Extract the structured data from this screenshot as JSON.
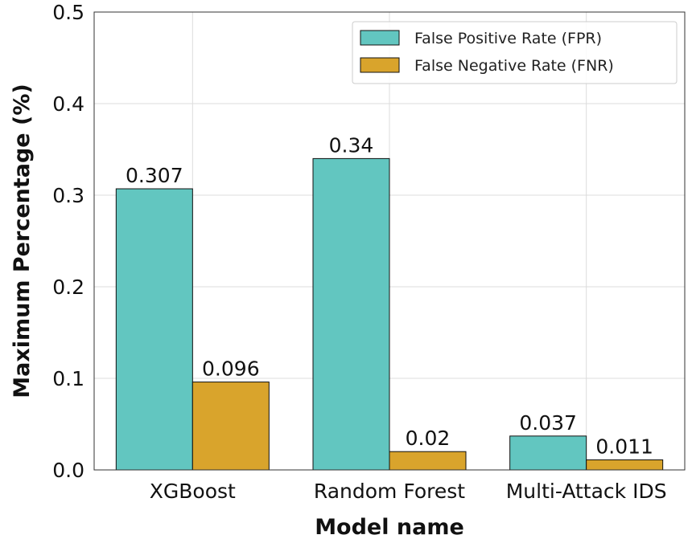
{
  "chart_data": {
    "type": "bar",
    "title": "",
    "xlabel": "Model name",
    "ylabel": "Maximum Percentage (%)",
    "ylim": [
      0,
      0.5
    ],
    "yticks": [
      0.0,
      0.1,
      0.2,
      0.3,
      0.4,
      0.5
    ],
    "ytick_labels": [
      "0.0",
      "0.1",
      "0.2",
      "0.3",
      "0.4",
      "0.5"
    ],
    "categories": [
      "XGBoost",
      "Random Forest",
      "Multi-Attack IDS"
    ],
    "series": [
      {
        "name": "False Positive Rate (FPR)",
        "color": "#62c6c0",
        "values": [
          0.307,
          0.34,
          0.037
        ],
        "value_labels": [
          "0.307",
          "0.34",
          "0.037"
        ]
      },
      {
        "name": "False Negative Rate (FNR)",
        "color": "#d9a42c",
        "values": [
          0.096,
          0.02,
          0.011
        ],
        "value_labels": [
          "0.096",
          "0.02",
          "0.011"
        ]
      }
    ],
    "grid": true,
    "legend_position": "top-right"
  }
}
